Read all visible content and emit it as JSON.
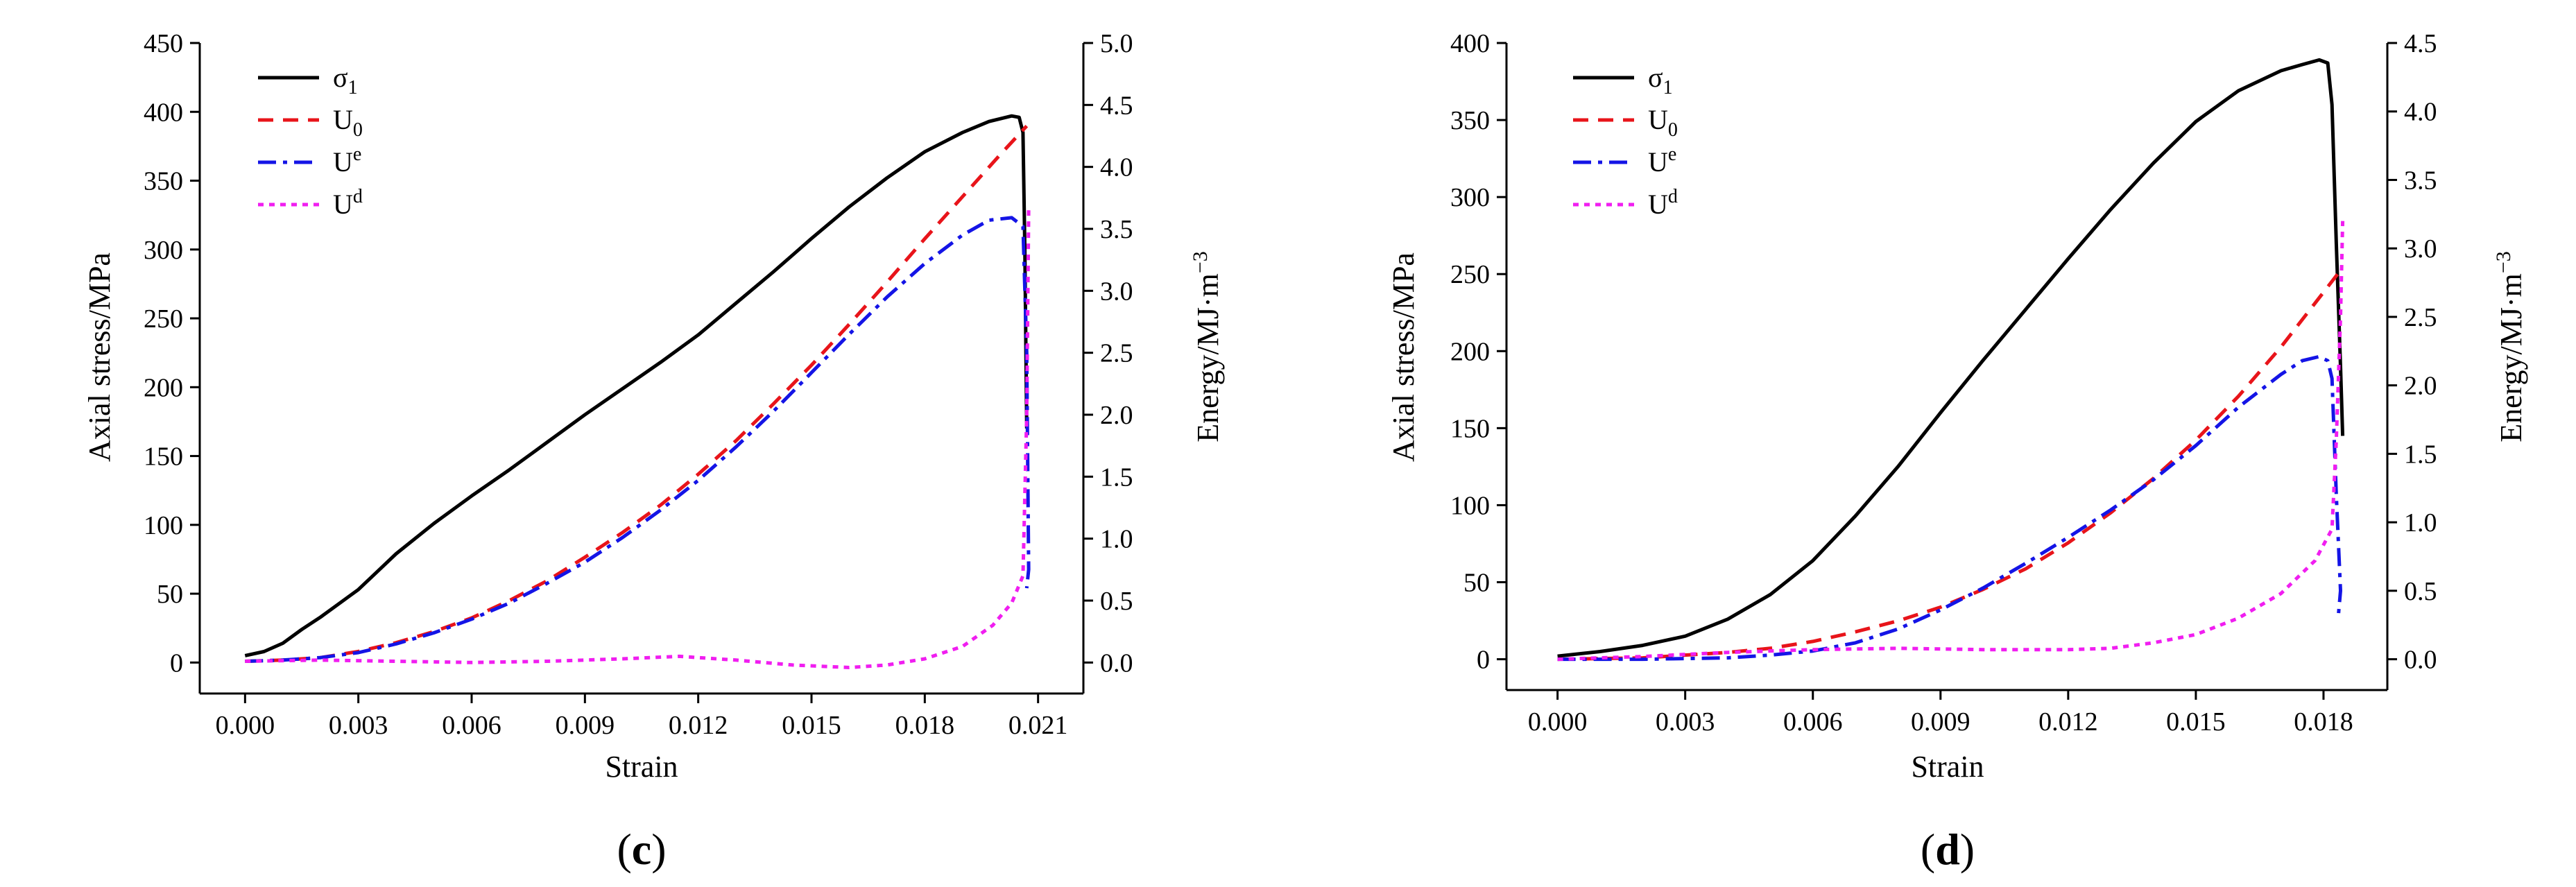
{
  "chart_data": [
    {
      "type": "line",
      "panel_label": {
        "open": "(",
        "letter": "c",
        "close": ")"
      },
      "xlabel": "Strain",
      "ylabel_left": "Axial stress/MPa",
      "ylabel_right": {
        "text": "Energy/MJ·m",
        "superscript": "−3"
      },
      "xlim": [
        -0.0012,
        0.0222
      ],
      "ylim_left": [
        -22.5,
        450
      ],
      "ylim_right": [
        -0.25,
        5.0
      ],
      "x_ticks": [
        0.0,
        0.003,
        0.006,
        0.009,
        0.012,
        0.015,
        0.018,
        0.021
      ],
      "x_tick_labels": [
        "0.000",
        "0.003",
        "0.006",
        "0.009",
        "0.012",
        "0.015",
        "0.018",
        "0.021"
      ],
      "y_left_ticks": [
        0,
        50,
        100,
        150,
        200,
        250,
        300,
        350,
        400,
        450
      ],
      "y_left_tick_labels": [
        "0",
        "50",
        "100",
        "150",
        "200",
        "250",
        "300",
        "350",
        "400",
        "450"
      ],
      "y_right_ticks": [
        0.0,
        0.5,
        1.0,
        1.5,
        2.0,
        2.5,
        3.0,
        3.5,
        4.0,
        4.5,
        5.0
      ],
      "y_right_tick_labels": [
        "0.0",
        "0.5",
        "1.0",
        "1.5",
        "2.0",
        "2.5",
        "3.0",
        "3.5",
        "4.0",
        "4.5",
        "5.0"
      ],
      "legend_position": "top-left",
      "series": [
        {
          "name": "σ1",
          "label_main": "σ",
          "label_mark": "1",
          "label_mark_type": "sub",
          "axis": "left",
          "color": "#000000",
          "dash": "solid",
          "points": [
            [
              0.0,
              5
            ],
            [
              0.0005,
              8
            ],
            [
              0.001,
              14
            ],
            [
              0.0015,
              24
            ],
            [
              0.002,
              33
            ],
            [
              0.0025,
              43
            ],
            [
              0.003,
              53
            ],
            [
              0.0035,
              66
            ],
            [
              0.004,
              79
            ],
            [
              0.005,
              101
            ],
            [
              0.006,
              121
            ],
            [
              0.007,
              140
            ],
            [
              0.008,
              160
            ],
            [
              0.009,
              180
            ],
            [
              0.01,
              199
            ],
            [
              0.011,
              218
            ],
            [
              0.012,
              238
            ],
            [
              0.013,
              261
            ],
            [
              0.014,
              284
            ],
            [
              0.015,
              308
            ],
            [
              0.016,
              331
            ],
            [
              0.017,
              352
            ],
            [
              0.018,
              371
            ],
            [
              0.019,
              385
            ],
            [
              0.0197,
              393
            ],
            [
              0.0203,
              397
            ],
            [
              0.0205,
              396
            ],
            [
              0.0206,
              385
            ],
            [
              0.02065,
              300
            ],
            [
              0.0207,
              170
            ]
          ]
        },
        {
          "name": "U0",
          "label_main": "U",
          "label_mark": "0",
          "label_mark_type": "sub",
          "axis": "right",
          "color": "#e8141a",
          "dash": "22 14",
          "points": [
            [
              0.0,
              0.01
            ],
            [
              0.001,
              0.02
            ],
            [
              0.002,
              0.04
            ],
            [
              0.003,
              0.09
            ],
            [
              0.004,
              0.16
            ],
            [
              0.005,
              0.25
            ],
            [
              0.006,
              0.36
            ],
            [
              0.007,
              0.5
            ],
            [
              0.008,
              0.66
            ],
            [
              0.009,
              0.85
            ],
            [
              0.01,
              1.05
            ],
            [
              0.011,
              1.27
            ],
            [
              0.012,
              1.52
            ],
            [
              0.013,
              1.79
            ],
            [
              0.014,
              2.09
            ],
            [
              0.015,
              2.4
            ],
            [
              0.016,
              2.73
            ],
            [
              0.017,
              3.07
            ],
            [
              0.018,
              3.42
            ],
            [
              0.019,
              3.76
            ],
            [
              0.02,
              4.1
            ],
            [
              0.0207,
              4.33
            ]
          ]
        },
        {
          "name": "Ue",
          "label_main": "U",
          "label_mark": "e",
          "label_mark_type": "sup",
          "axis": "right",
          "color": "#1414e6",
          "dash": "26 10 6 10",
          "points": [
            [
              0.0,
              0.01
            ],
            [
              0.001,
              0.02
            ],
            [
              0.002,
              0.04
            ],
            [
              0.003,
              0.08
            ],
            [
              0.004,
              0.15
            ],
            [
              0.005,
              0.24
            ],
            [
              0.006,
              0.35
            ],
            [
              0.007,
              0.48
            ],
            [
              0.008,
              0.64
            ],
            [
              0.009,
              0.81
            ],
            [
              0.01,
              1.01
            ],
            [
              0.011,
              1.23
            ],
            [
              0.012,
              1.47
            ],
            [
              0.013,
              1.74
            ],
            [
              0.014,
              2.03
            ],
            [
              0.015,
              2.34
            ],
            [
              0.016,
              2.65
            ],
            [
              0.017,
              2.95
            ],
            [
              0.018,
              3.22
            ],
            [
              0.019,
              3.45
            ],
            [
              0.0197,
              3.57
            ],
            [
              0.0203,
              3.59
            ],
            [
              0.0206,
              3.52
            ],
            [
              0.0207,
              2.5
            ],
            [
              0.02075,
              0.75
            ],
            [
              0.0207,
              0.6
            ]
          ]
        },
        {
          "name": "Ud",
          "label_main": "U",
          "label_mark": "d",
          "label_mark_type": "sup",
          "axis": "right",
          "color": "#f01ef0",
          "dash": "8 8",
          "points": [
            [
              0.0,
              0.01
            ],
            [
              0.002,
              0.02
            ],
            [
              0.004,
              0.01
            ],
            [
              0.006,
              0.0
            ],
            [
              0.008,
              0.01
            ],
            [
              0.01,
              0.03
            ],
            [
              0.0115,
              0.05
            ],
            [
              0.013,
              0.02
            ],
            [
              0.0145,
              -0.02
            ],
            [
              0.016,
              -0.04
            ],
            [
              0.017,
              -0.02
            ],
            [
              0.018,
              0.03
            ],
            [
              0.019,
              0.13
            ],
            [
              0.0198,
              0.3
            ],
            [
              0.0203,
              0.48
            ],
            [
              0.0206,
              0.7
            ],
            [
              0.0207,
              2.0
            ],
            [
              0.02075,
              3.65
            ]
          ]
        }
      ]
    },
    {
      "type": "line",
      "panel_label": {
        "open": "(",
        "letter": "d",
        "close": ")"
      },
      "xlabel": "Strain",
      "ylabel_left": "Axial stress/MPa",
      "ylabel_right": {
        "text": "Energy/MJ·m",
        "superscript": "−3"
      },
      "xlim": [
        -0.0012,
        0.0195
      ],
      "ylim_left": [
        -20,
        400
      ],
      "ylim_right": [
        -0.225,
        4.5
      ],
      "x_ticks": [
        0.0,
        0.003,
        0.006,
        0.009,
        0.012,
        0.015,
        0.018
      ],
      "x_tick_labels": [
        "0.000",
        "0.003",
        "0.006",
        "0.009",
        "0.012",
        "0.015",
        "0.018"
      ],
      "y_left_ticks": [
        0,
        50,
        100,
        150,
        200,
        250,
        300,
        350,
        400
      ],
      "y_left_tick_labels": [
        "0",
        "50",
        "100",
        "150",
        "200",
        "250",
        "300",
        "350",
        "400"
      ],
      "y_right_ticks": [
        0.0,
        0.5,
        1.0,
        1.5,
        2.0,
        2.5,
        3.0,
        3.5,
        4.0,
        4.5
      ],
      "y_right_tick_labels": [
        "0.0",
        "0.5",
        "1.0",
        "1.5",
        "2.0",
        "2.5",
        "3.0",
        "3.5",
        "4.0",
        "4.5"
      ],
      "legend_position": "top-left",
      "series": [
        {
          "name": "σ1",
          "label_main": "σ",
          "label_mark": "1",
          "label_mark_type": "sub",
          "axis": "left",
          "color": "#000000",
          "dash": "solid",
          "points": [
            [
              0.0,
              2
            ],
            [
              0.001,
              5
            ],
            [
              0.002,
              9
            ],
            [
              0.003,
              15
            ],
            [
              0.004,
              26
            ],
            [
              0.005,
              42
            ],
            [
              0.006,
              64
            ],
            [
              0.007,
              93
            ],
            [
              0.008,
              125
            ],
            [
              0.009,
              160
            ],
            [
              0.01,
              194
            ],
            [
              0.011,
              227
            ],
            [
              0.012,
              260
            ],
            [
              0.013,
              292
            ],
            [
              0.014,
              322
            ],
            [
              0.015,
              349
            ],
            [
              0.016,
              369
            ],
            [
              0.017,
              382
            ],
            [
              0.0175,
              386
            ],
            [
              0.0179,
              389
            ],
            [
              0.0181,
              387
            ],
            [
              0.0182,
              360
            ],
            [
              0.0183,
              270
            ],
            [
              0.0184,
              190
            ],
            [
              0.01845,
              145
            ]
          ]
        },
        {
          "name": "U0",
          "label_main": "U",
          "label_mark": "0",
          "label_mark_type": "sub",
          "axis": "right",
          "color": "#e8141a",
          "dash": "22 14",
          "points": [
            [
              0.0,
              0.0
            ],
            [
              0.002,
              0.01
            ],
            [
              0.004,
              0.05
            ],
            [
              0.005,
              0.08
            ],
            [
              0.006,
              0.13
            ],
            [
              0.007,
              0.2
            ],
            [
              0.008,
              0.28
            ],
            [
              0.009,
              0.38
            ],
            [
              0.01,
              0.51
            ],
            [
              0.011,
              0.66
            ],
            [
              0.012,
              0.85
            ],
            [
              0.013,
              1.07
            ],
            [
              0.014,
              1.32
            ],
            [
              0.015,
              1.6
            ],
            [
              0.016,
              1.92
            ],
            [
              0.017,
              2.28
            ],
            [
              0.018,
              2.68
            ],
            [
              0.0184,
              2.84
            ]
          ]
        },
        {
          "name": "Ue",
          "label_main": "U",
          "label_mark": "e",
          "label_mark_type": "sup",
          "axis": "right",
          "color": "#1414e6",
          "dash": "26 10 6 10",
          "points": [
            [
              0.0,
              0.0
            ],
            [
              0.002,
              0.0
            ],
            [
              0.004,
              0.01
            ],
            [
              0.005,
              0.03
            ],
            [
              0.006,
              0.06
            ],
            [
              0.007,
              0.12
            ],
            [
              0.008,
              0.22
            ],
            [
              0.009,
              0.36
            ],
            [
              0.01,
              0.52
            ],
            [
              0.011,
              0.7
            ],
            [
              0.012,
              0.89
            ],
            [
              0.013,
              1.09
            ],
            [
              0.014,
              1.31
            ],
            [
              0.015,
              1.56
            ],
            [
              0.016,
              1.84
            ],
            [
              0.017,
              2.08
            ],
            [
              0.0175,
              2.18
            ],
            [
              0.0179,
              2.21
            ],
            [
              0.0181,
              2.18
            ],
            [
              0.0182,
              2.05
            ],
            [
              0.0183,
              1.2
            ],
            [
              0.0184,
              0.5
            ],
            [
              0.01835,
              0.32
            ]
          ]
        },
        {
          "name": "Ud",
          "label_main": "U",
          "label_mark": "d",
          "label_mark_type": "sup",
          "axis": "right",
          "color": "#f01ef0",
          "dash": "8 8",
          "points": [
            [
              0.0,
              0.0
            ],
            [
              0.002,
              0.02
            ],
            [
              0.004,
              0.05
            ],
            [
              0.006,
              0.07
            ],
            [
              0.008,
              0.08
            ],
            [
              0.01,
              0.07
            ],
            [
              0.012,
              0.07
            ],
            [
              0.013,
              0.08
            ],
            [
              0.014,
              0.12
            ],
            [
              0.015,
              0.18
            ],
            [
              0.016,
              0.3
            ],
            [
              0.017,
              0.48
            ],
            [
              0.0178,
              0.72
            ],
            [
              0.0182,
              0.95
            ],
            [
              0.0183,
              1.6
            ],
            [
              0.0184,
              2.5
            ],
            [
              0.01845,
              3.2
            ]
          ]
        }
      ]
    }
  ]
}
